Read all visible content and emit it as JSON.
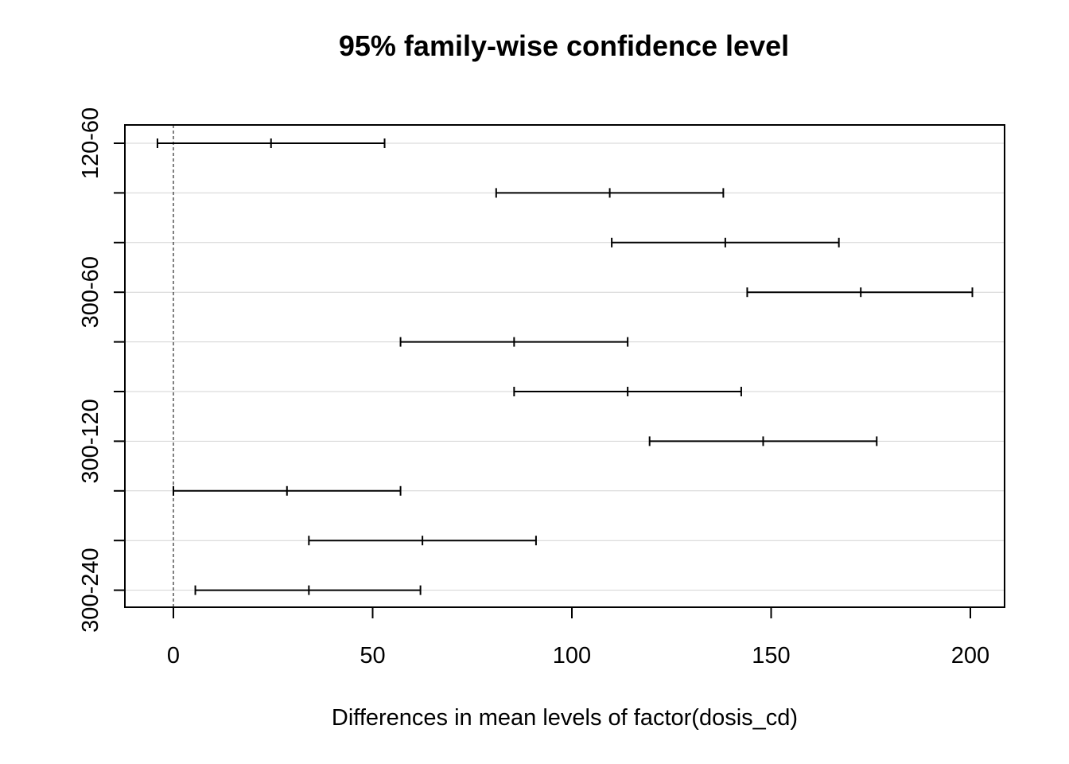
{
  "chart_data": {
    "type": "interval",
    "title": "95% family-wise confidence level",
    "xlabel": "Differences in mean levels of factor(dosis_cd)",
    "ylabel": "",
    "xlim": [
      -12,
      209
    ],
    "x_ticks": [
      0,
      50,
      100,
      150,
      200
    ],
    "zero_line": true,
    "grid": "horizontal",
    "comparisons": [
      {
        "label": "120-60",
        "show_label": true,
        "lwr": -4,
        "diff": 24.5,
        "upr": 53
      },
      {
        "label": "",
        "show_label": false,
        "lwr": 81,
        "diff": 109.5,
        "upr": 138
      },
      {
        "label": "",
        "show_label": false,
        "lwr": 110,
        "diff": 138.5,
        "upr": 167
      },
      {
        "label": "300-60",
        "show_label": true,
        "lwr": 144,
        "diff": 172.5,
        "upr": 200.5
      },
      {
        "label": "",
        "show_label": false,
        "lwr": 57,
        "diff": 85.5,
        "upr": 114
      },
      {
        "label": "",
        "show_label": false,
        "lwr": 85.5,
        "diff": 114,
        "upr": 142.5
      },
      {
        "label": "300-120",
        "show_label": true,
        "lwr": 119.5,
        "diff": 148,
        "upr": 176.5
      },
      {
        "label": "",
        "show_label": false,
        "lwr": 0,
        "diff": 28.5,
        "upr": 57
      },
      {
        "label": "",
        "show_label": false,
        "lwr": 34,
        "diff": 62.5,
        "upr": 91
      },
      {
        "label": "300-240",
        "show_label": true,
        "lwr": 5.5,
        "diff": 34,
        "upr": 62
      }
    ]
  }
}
